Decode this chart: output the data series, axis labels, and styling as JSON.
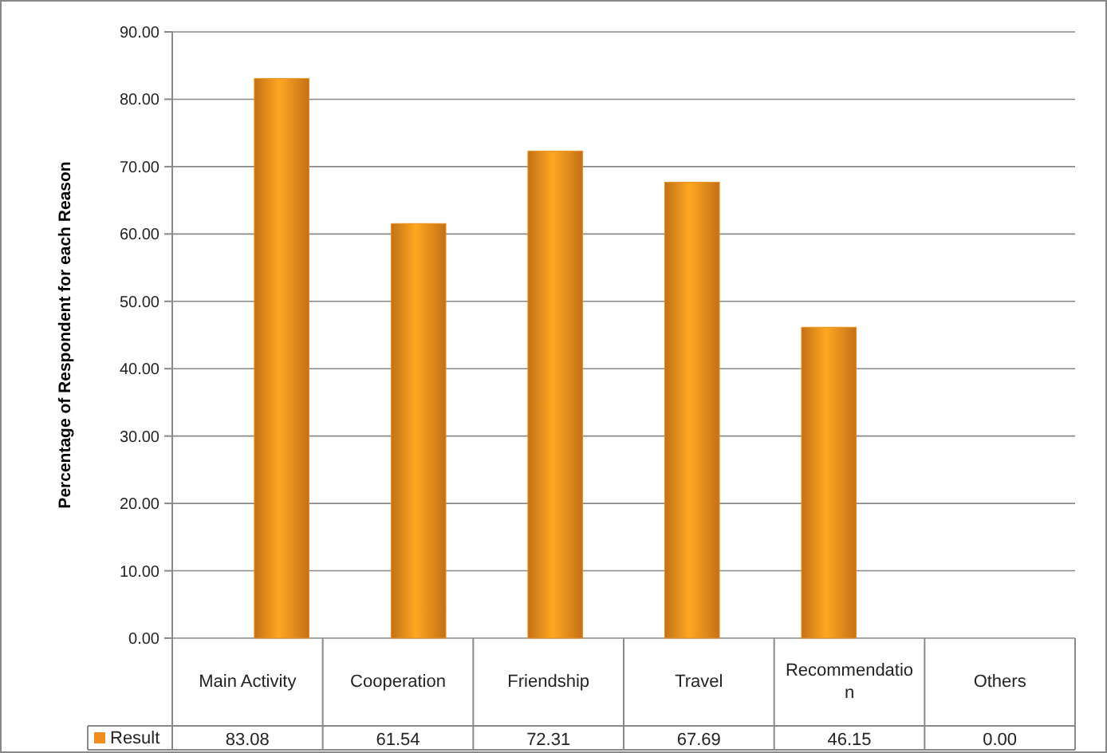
{
  "chart_data": {
    "type": "bar",
    "ylabel": "Percentage of Respondent for each Reason",
    "categories": [
      "Main Activity",
      "Cooperation",
      "Friendship",
      "Travel",
      "Recommendation",
      "Others"
    ],
    "series": [
      {
        "name": "Result",
        "color": "#f08c1c",
        "values": [
          83.08,
          61.54,
          72.31,
          67.69,
          46.15,
          0.0
        ],
        "value_labels": [
          "83.08",
          "61.54",
          "72.31",
          "67.69",
          "46.15",
          "0.00"
        ]
      }
    ],
    "ylim": [
      0,
      90
    ],
    "yticks": [
      {
        "value": 0,
        "label": "0.00"
      },
      {
        "value": 10,
        "label": "10.00"
      },
      {
        "value": 20,
        "label": "20.00"
      },
      {
        "value": 30,
        "label": "30.00"
      },
      {
        "value": 40,
        "label": "40.00"
      },
      {
        "value": 50,
        "label": "50.00"
      },
      {
        "value": 60,
        "label": "60.00"
      },
      {
        "value": 70,
        "label": "70.00"
      },
      {
        "value": 80,
        "label": "80.00"
      },
      {
        "value": 90,
        "label": "90.00"
      }
    ],
    "grid": "y",
    "legend": "bottom left"
  }
}
